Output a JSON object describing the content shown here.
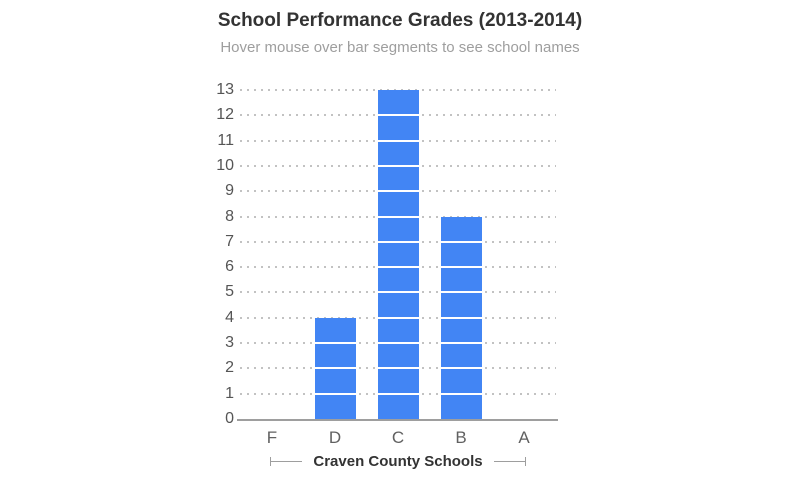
{
  "header": {
    "title": "School Performance Grades (2013-2014)",
    "subtitle": "Hover mouse over bar segments to see school names"
  },
  "chart_data": {
    "type": "bar",
    "title": "School Performance Grades (2013-2014)",
    "subtitle": "Hover mouse over bar segments to see school names",
    "categories": [
      "F",
      "D",
      "C",
      "B",
      "A"
    ],
    "values": [
      0,
      4,
      13,
      8,
      0
    ],
    "xlabel": "Craven County Schools",
    "ylabel": "",
    "ylim": [
      0,
      13
    ],
    "yticks": [
      0,
      1,
      2,
      3,
      4,
      5,
      6,
      7,
      8,
      9,
      10,
      11,
      12,
      13
    ],
    "grid": "horizontal dotted",
    "legend": "none",
    "bar_style": "stacked unit segments with white dividers",
    "colors": {
      "bar": "#4285f4",
      "segment_divider": "#ffffff",
      "grid": "#c2c2c2",
      "axis": "#9e9e9e",
      "y_tick_text": "#555555",
      "x_tick_text": "#616161",
      "title_text": "#333333",
      "subtitle_text": "#9e9e9e"
    }
  }
}
